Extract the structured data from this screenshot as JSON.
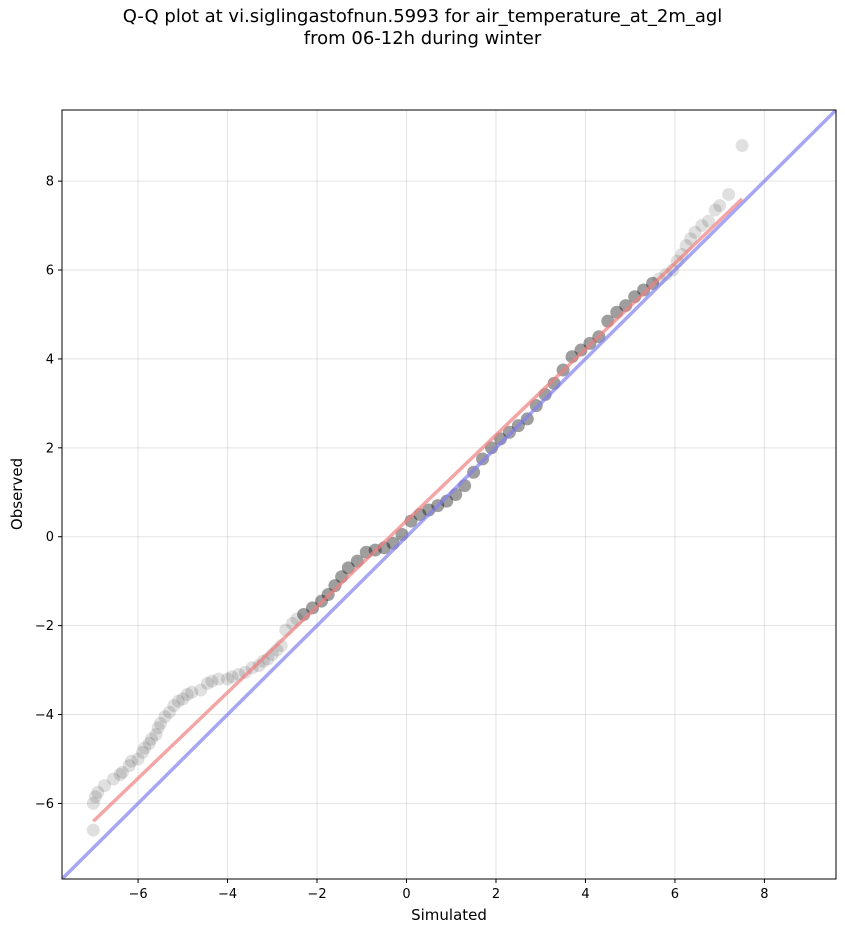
{
  "chart_data": {
    "type": "scatter",
    "title": "Q-Q plot at vi.siglingastofnun.5993 for air_temperature_at_2m_agl",
    "subtitle": "from 06-12h during winter",
    "xlabel": "Simulated",
    "ylabel": "Observed",
    "xlim": [
      -7.7,
      9.6
    ],
    "ylim": [
      -7.7,
      9.6
    ],
    "xticks": [
      -6,
      -4,
      -2,
      0,
      2,
      4,
      6,
      8
    ],
    "yticks": [
      -6,
      -4,
      -2,
      0,
      2,
      4,
      6,
      8
    ],
    "grid": true,
    "colors": {
      "points": "#000000",
      "fit_line": "#f08080",
      "identity_line": "#8080f0",
      "dense_overlay": "#000080"
    },
    "identity_line": [
      [
        -7.7,
        -7.7
      ],
      [
        9.6,
        9.6
      ]
    ],
    "fit_line": [
      [
        -7.0,
        -6.4
      ],
      [
        7.5,
        7.6
      ]
    ],
    "series": [
      {
        "x": [
          -7.0,
          -7.0,
          -6.95,
          -6.9,
          -6.75,
          -6.55,
          -6.4,
          -6.35,
          -6.2,
          -6.15,
          -6.0,
          -5.9,
          -5.85,
          -5.75,
          -5.7,
          -5.6,
          -5.55,
          -5.5,
          -5.4,
          -5.3,
          -5.2,
          -5.1,
          -5.0,
          -4.9,
          -4.8,
          -4.6,
          -4.45,
          -4.35,
          -4.2,
          -4.0,
          -3.9,
          -3.75,
          -3.6,
          -3.45,
          -3.3,
          -3.2,
          -3.1,
          -3.0,
          -2.9,
          -2.8,
          -2.7,
          -2.55,
          -2.45,
          -2.3,
          -2.1,
          -1.9,
          -1.75,
          -1.6,
          -1.45,
          -1.3,
          -1.1,
          -0.9,
          -0.7,
          -0.5,
          -0.3,
          -0.1,
          0.1,
          0.3,
          0.5,
          0.7,
          0.9,
          1.1,
          1.3,
          1.5,
          1.7,
          1.9,
          2.1,
          2.3,
          2.5,
          2.7,
          2.9,
          3.1,
          3.3,
          3.5,
          3.7,
          3.9,
          4.1,
          4.3,
          4.5,
          4.7,
          4.9,
          5.1,
          5.3,
          5.5,
          5.65,
          5.8,
          5.95,
          6.05,
          6.15,
          6.25,
          6.35,
          6.45,
          6.6,
          6.75,
          6.9,
          7.0,
          7.2,
          7.5
        ],
        "y": [
          -6.6,
          -6.0,
          -5.85,
          -5.75,
          -5.6,
          -5.45,
          -5.35,
          -5.3,
          -5.15,
          -5.05,
          -5.0,
          -4.85,
          -4.75,
          -4.65,
          -4.55,
          -4.45,
          -4.3,
          -4.2,
          -4.05,
          -3.95,
          -3.8,
          -3.7,
          -3.65,
          -3.55,
          -3.5,
          -3.45,
          -3.3,
          -3.25,
          -3.2,
          -3.2,
          -3.15,
          -3.1,
          -3.05,
          -2.95,
          -2.9,
          -2.8,
          -2.75,
          -2.65,
          -2.55,
          -2.45,
          -2.1,
          -1.95,
          -1.85,
          -1.75,
          -1.6,
          -1.45,
          -1.3,
          -1.1,
          -0.9,
          -0.7,
          -0.55,
          -0.35,
          -0.3,
          -0.25,
          -0.15,
          0.05,
          0.35,
          0.5,
          0.6,
          0.7,
          0.8,
          0.95,
          1.15,
          1.45,
          1.75,
          2.0,
          2.2,
          2.35,
          2.5,
          2.65,
          2.95,
          3.2,
          3.45,
          3.75,
          4.05,
          4.2,
          4.35,
          4.5,
          4.85,
          5.05,
          5.2,
          5.4,
          5.55,
          5.7,
          5.8,
          5.9,
          6.0,
          6.2,
          6.35,
          6.55,
          6.7,
          6.85,
          7.0,
          7.1,
          7.35,
          7.45,
          7.7,
          8.8
        ]
      }
    ]
  }
}
